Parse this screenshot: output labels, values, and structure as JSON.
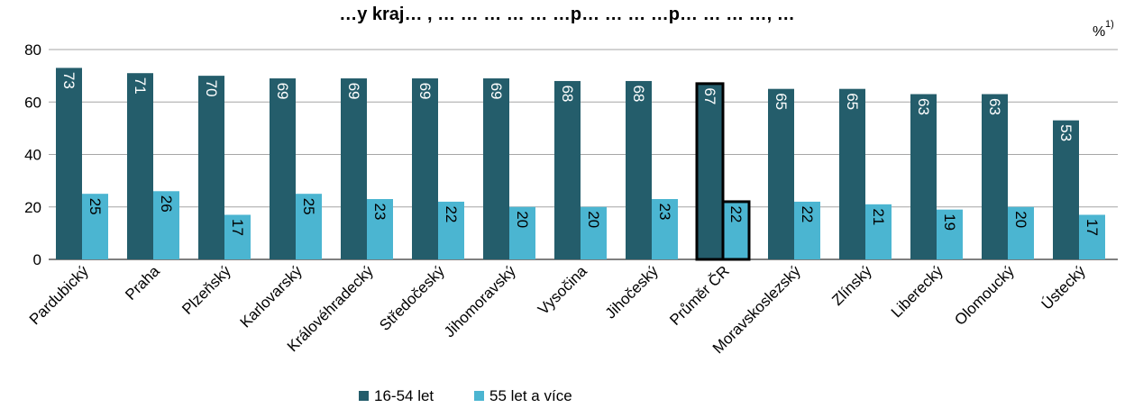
{
  "chart_data": {
    "type": "bar",
    "title": "…y kraj… , … … … … … …p… … … …p… … … …, …",
    "unit_label": "%",
    "unit_footnote": "1)",
    "ylim": [
      0,
      80
    ],
    "yticks": [
      0,
      20,
      40,
      60,
      80
    ],
    "grid": true,
    "legend_position": "bottom",
    "highlight_category": "Průměr ČR",
    "categories": [
      "Pardubický",
      "Praha",
      "Plzeňský",
      "Karlovarský",
      "Královéhradecký",
      "Středočeský",
      "Jihomoravský",
      "Vysočina",
      "Jihočeský",
      "Průměr ČR",
      "Moravskoslezský",
      "Zlínský",
      "Liberecký",
      "Olomoucký",
      "Ústecký"
    ],
    "series": [
      {
        "name": "16-54 let",
        "color": "#245d6b",
        "label_color": "#ffffff",
        "values": [
          73,
          71,
          70,
          69,
          69,
          69,
          69,
          68,
          68,
          67,
          65,
          65,
          63,
          63,
          53
        ]
      },
      {
        "name": "55 let a více",
        "color": "#4bb5d1",
        "label_color": "#000000",
        "values": [
          25,
          26,
          17,
          25,
          23,
          22,
          20,
          20,
          23,
          22,
          22,
          21,
          19,
          20,
          17
        ]
      }
    ]
  }
}
